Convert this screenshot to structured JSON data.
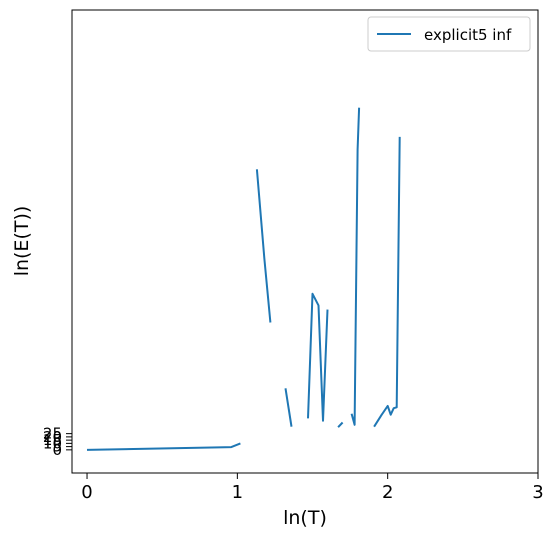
{
  "chart_data": {
    "type": "line",
    "title": "",
    "xlabel": "ln(T)",
    "ylabel": "ln(E(T))",
    "xlim": [
      -0.1,
      3.0
    ],
    "ylim": [
      -5,
      95
    ],
    "xticks": [
      "0",
      "1",
      "2",
      "3"
    ],
    "xtick_values": [
      0,
      1,
      2,
      3
    ],
    "yticks": [
      "0",
      "5",
      "10",
      "15",
      "20",
      "25"
    ],
    "ytick_values": [
      0,
      0.7,
      1.4,
      2.1,
      2.8,
      3.5
    ],
    "grid": false,
    "legend_position": "top-right",
    "series": [
      {
        "name": "explicit5 inf",
        "color": "#1f77b4",
        "segments": [
          [
            [
              0.0,
              0.0
            ],
            [
              0.96,
              0.6
            ],
            [
              1.02,
              1.4
            ]
          ],
          [
            [
              1.13,
              60.6
            ],
            [
              1.18,
              41.2
            ],
            [
              1.22,
              27.5
            ]
          ],
          [
            [
              1.32,
              13.3
            ],
            [
              1.36,
              5.0
            ]
          ],
          [
            [
              1.47,
              6.8
            ],
            [
              1.5,
              33.7
            ],
            [
              1.54,
              31.2
            ],
            [
              1.57,
              6.3
            ],
            [
              1.6,
              30.3
            ]
          ],
          [
            [
              1.67,
              4.9
            ],
            [
              1.7,
              5.9
            ]
          ],
          [
            [
              1.76,
              7.8
            ],
            [
              1.78,
              5.4
            ],
            [
              1.8,
              64.9
            ],
            [
              1.81,
              73.9
            ]
          ],
          [
            [
              1.91,
              5.0
            ],
            [
              1.96,
              7.6
            ],
            [
              2.0,
              9.5
            ],
            [
              2.02,
              7.6
            ],
            [
              2.04,
              9.0
            ],
            [
              2.06,
              9.2
            ],
            [
              2.08,
              67.6
            ]
          ]
        ]
      }
    ]
  }
}
